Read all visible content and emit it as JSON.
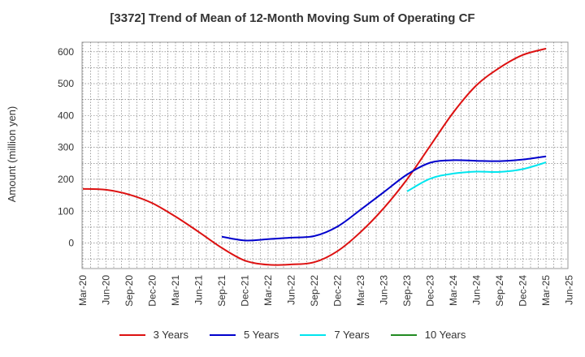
{
  "chart_data": {
    "type": "line",
    "title": "[3372]  Trend of Mean of 12-Month Moving Sum of Operating CF",
    "xlabel": "",
    "ylabel": "Amount (million yen)",
    "ylim": [
      -80,
      630
    ],
    "yticks": [
      0,
      100,
      200,
      300,
      400,
      500,
      600
    ],
    "categories": [
      "Mar-20",
      "Jun-20",
      "Sep-20",
      "Dec-20",
      "Mar-21",
      "Jun-21",
      "Sep-21",
      "Dec-21",
      "Mar-22",
      "Jun-22",
      "Sep-22",
      "Dec-22",
      "Mar-23",
      "Jun-23",
      "Sep-23",
      "Dec-23",
      "Mar-24",
      "Jun-24",
      "Sep-24",
      "Dec-24",
      "Mar-25",
      "Jun-25"
    ],
    "grid": true,
    "legend_position": "bottom",
    "series": [
      {
        "name": "3 Years",
        "color": "#dd1111",
        "values": [
          170,
          167,
          152,
          125,
          83,
          35,
          -15,
          -55,
          -68,
          -67,
          -60,
          -25,
          35,
          110,
          200,
          305,
          410,
          495,
          550,
          590,
          610,
          null
        ]
      },
      {
        "name": "5 Years",
        "color": "#0000cc",
        "values": [
          null,
          null,
          null,
          null,
          null,
          null,
          20,
          8,
          12,
          17,
          22,
          52,
          105,
          160,
          215,
          252,
          260,
          258,
          257,
          262,
          272,
          null
        ]
      },
      {
        "name": "7 Years",
        "color": "#00e5ee",
        "values": [
          null,
          null,
          null,
          null,
          null,
          null,
          null,
          null,
          null,
          null,
          null,
          null,
          null,
          null,
          162,
          202,
          218,
          224,
          223,
          232,
          253,
          null
        ]
      },
      {
        "name": "10 Years",
        "color": "#228b22",
        "values": [
          null,
          null,
          null,
          null,
          null,
          null,
          null,
          null,
          null,
          null,
          null,
          null,
          null,
          null,
          null,
          null,
          null,
          null,
          null,
          null,
          null,
          null
        ]
      }
    ]
  }
}
